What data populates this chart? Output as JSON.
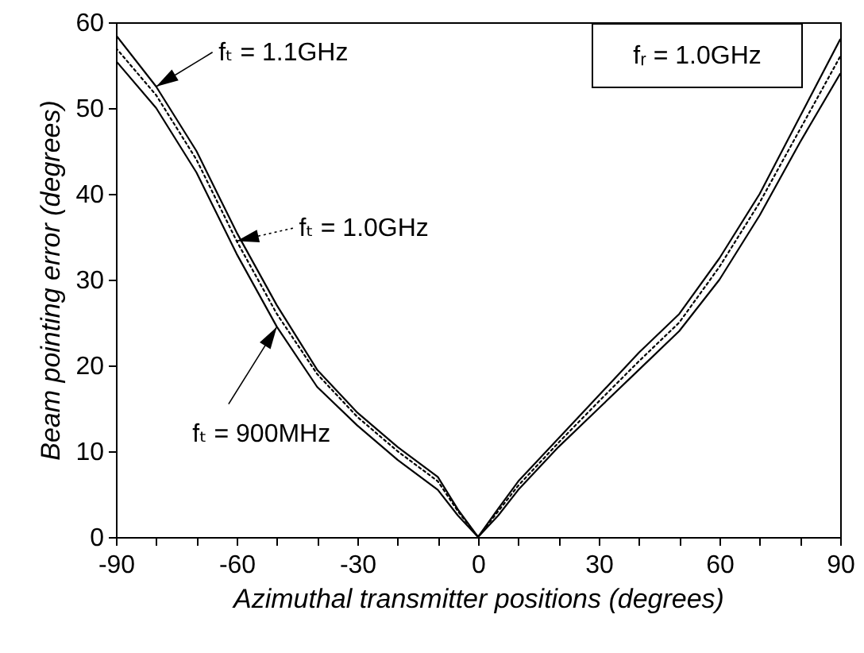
{
  "chart_data": {
    "type": "line",
    "xlabel": "Azimuthal transmitter positions (degrees)",
    "ylabel": "Beam pointing error (degrees)",
    "x": [
      -90,
      -80,
      -70,
      -60,
      -50,
      -40,
      -30,
      -20,
      -10,
      -5,
      0,
      5,
      10,
      20,
      30,
      40,
      50,
      60,
      70,
      80,
      90
    ],
    "series": [
      {
        "name": "fₜ = 1.1GHz",
        "color": "#000000",
        "line_style": "solid",
        "values": [
          58.5,
          52.5,
          45,
          35.5,
          27,
          19.5,
          14.5,
          10.5,
          7,
          3.2,
          0,
          3.3,
          6.5,
          11.5,
          16.5,
          21.5,
          26,
          32.5,
          40,
          49,
          58
        ]
      },
      {
        "name": "fₜ = 1.0GHz",
        "color": "#000000",
        "line_style": "dotted",
        "values": [
          57,
          51.5,
          44,
          34.5,
          26,
          19,
          14,
          10,
          6.5,
          3,
          0,
          3,
          6,
          11,
          15.8,
          20.5,
          25,
          31.5,
          39,
          47.5,
          56
        ]
      },
      {
        "name": "fₜ = 900MHz",
        "color": "#000000",
        "line_style": "solid",
        "values": [
          55.5,
          50,
          42.5,
          33,
          24.5,
          17.5,
          13,
          9,
          5.5,
          2.5,
          0,
          2.5,
          5.5,
          10.5,
          15,
          19.5,
          24,
          30,
          37.5,
          46,
          54
        ]
      }
    ],
    "annotations": [
      "fᵣ = 1.0GHz"
    ],
    "xlim": [
      -90,
      90
    ],
    "xticks": [
      -90,
      {
        "value": -80,
        "label": null
      },
      {
        "value": -70,
        "label": null
      },
      -60,
      {
        "value": -50,
        "label": null
      },
      {
        "value": -40,
        "label": null
      },
      -30,
      {
        "value": -20,
        "label": null
      },
      {
        "value": -10,
        "label": null
      },
      0,
      {
        "value": 10,
        "label": null
      },
      {
        "value": 20,
        "label": null
      },
      30,
      {
        "value": 40,
        "label": null
      },
      {
        "value": 50,
        "label": null
      },
      60,
      {
        "value": 70,
        "label": null
      },
      {
        "value": 80,
        "label": null
      },
      90
    ],
    "ylim": [
      0,
      60
    ],
    "yticks": [
      0,
      10,
      20,
      30,
      40,
      50,
      60
    ],
    "grid": false,
    "legend": "top left",
    "marker": "none"
  }
}
